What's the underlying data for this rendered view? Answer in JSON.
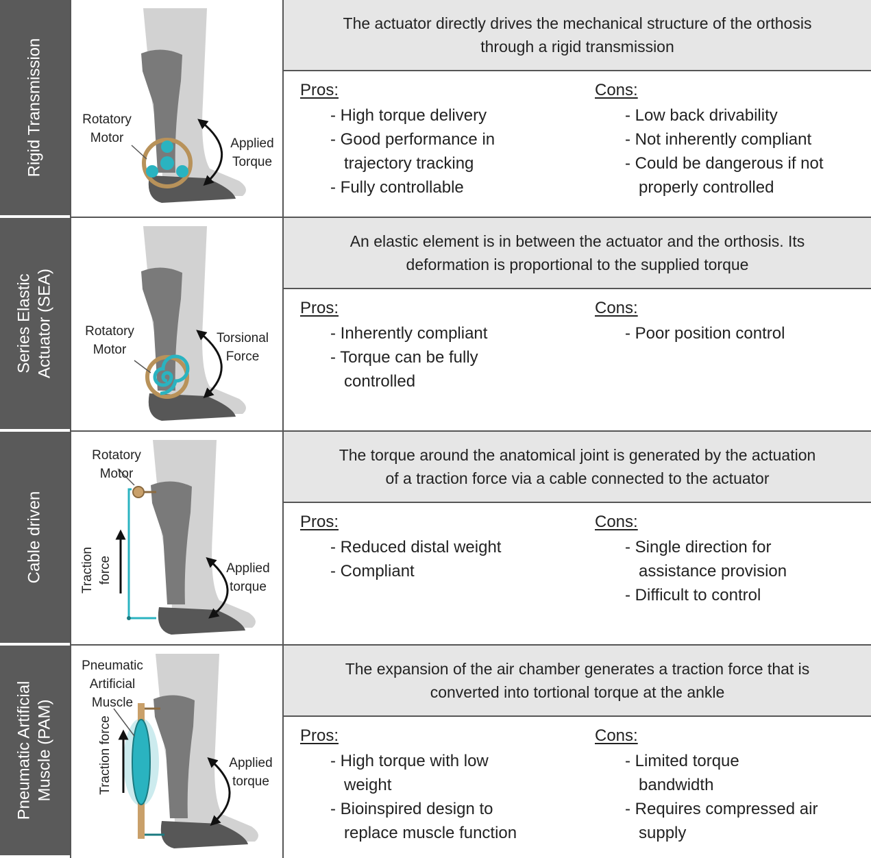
{
  "rows": [
    {
      "category": [
        "Rigid Transmission"
      ],
      "illustration_labels": [
        [
          "Rotatory",
          "Motor"
        ],
        [
          "Applied",
          "Torque"
        ]
      ],
      "description": [
        "The actuator directly drives the mechanical structure of the orthosis",
        "through a rigid transmission"
      ],
      "pros_heading": "Pros:",
      "pros": [
        [
          "- High torque delivery"
        ],
        [
          "- Good performance in",
          "trajectory tracking"
        ],
        [
          "- Fully controllable"
        ]
      ],
      "cons_heading": "Cons:",
      "cons": [
        [
          "- Low back drivability"
        ],
        [
          "- Not inherently compliant"
        ],
        [
          "- Could be dangerous if not",
          "properly controlled"
        ]
      ]
    },
    {
      "category": [
        "Series Elastic",
        "Actuator (SEA)"
      ],
      "illustration_labels": [
        [
          "Rotatory",
          "Motor"
        ],
        [
          "Torsional",
          "Force"
        ]
      ],
      "description": [
        "An elastic element is in between the actuator and the orthosis. Its",
        "deformation is proportional to the supplied torque"
      ],
      "pros_heading": "Pros:",
      "pros": [
        [
          "- Inherently compliant"
        ],
        [
          "- Torque can be fully",
          "controlled"
        ]
      ],
      "cons_heading": "Cons:",
      "cons": [
        [
          "- Poor position control"
        ]
      ]
    },
    {
      "category": [
        "Cable driven"
      ],
      "illustration_labels": [
        [
          "Rotatory",
          "Motor"
        ],
        [
          "Traction",
          "force"
        ],
        [
          "Applied",
          "torque"
        ]
      ],
      "description": [
        "The torque around the anatomical joint is generated by the actuation",
        "of a traction force via a cable connected to the actuator"
      ],
      "pros_heading": "Pros:",
      "pros": [
        [
          "- Reduced distal weight"
        ],
        [
          "- Compliant"
        ]
      ],
      "cons_heading": "Cons:",
      "cons": [
        [
          "- Single direction for",
          "assistance provision"
        ],
        [
          "- Difficult to control"
        ]
      ]
    },
    {
      "category": [
        "Pneumatic Artificial",
        "Muscle (PAM)"
      ],
      "illustration_labels": [
        [
          "Pneumatic",
          "Artificial",
          "Muscle"
        ],
        [
          "Traction force"
        ],
        [
          "Applied",
          "torque"
        ]
      ],
      "description": [
        "The expansion of the air chamber generates a traction force that is",
        "converted into tortional torque at the ankle"
      ],
      "pros_heading": "Pros:",
      "pros": [
        [
          "- High torque with low",
          "weight"
        ],
        [
          "- Bioinspired design to",
          "replace muscle function"
        ]
      ],
      "cons_heading": "Cons:",
      "cons": [
        [
          "- Limited torque",
          "bandwidth"
        ],
        [
          "- Requires compressed air",
          "supply"
        ]
      ]
    }
  ]
}
